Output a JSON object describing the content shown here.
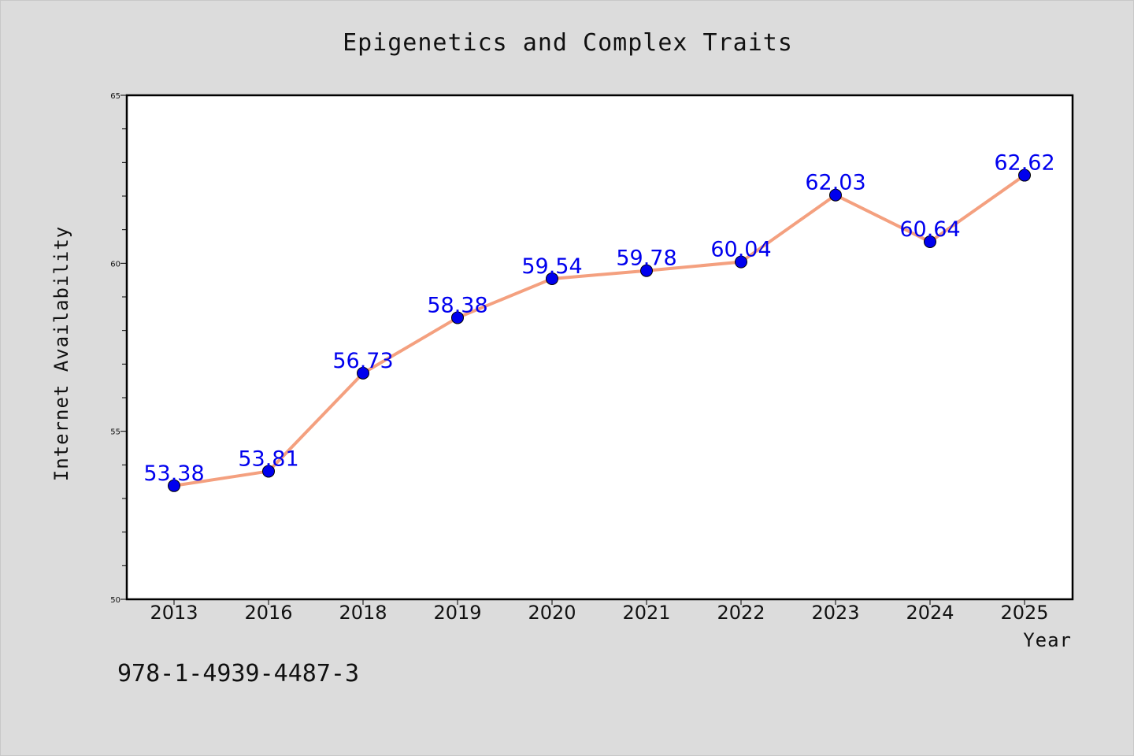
{
  "footer_text": "978-1-4939-4487-3",
  "colors": {
    "background": "#dcdcdc",
    "plot_background": "#ffffff",
    "line": "#f4a07f",
    "marker": "#0000ee",
    "data_label": "#0000ee",
    "axis": "#000000"
  },
  "chart_data": {
    "type": "line",
    "title": "Epigenetics and Complex Traits",
    "xlabel": "Year",
    "ylabel": "Internet Availability",
    "categories": [
      "2013",
      "2016",
      "2018",
      "2019",
      "2020",
      "2021",
      "2022",
      "2023",
      "2024",
      "2025"
    ],
    "series": [
      {
        "values": [
          53.38,
          53.81,
          56.73,
          58.38,
          59.54,
          59.78,
          60.04,
          62.03,
          60.64,
          62.62
        ],
        "data_labels": [
          "53.38",
          "53.81",
          "56.73",
          "58.38",
          "59.54",
          "59.78",
          "60.04",
          "62.03",
          "60.64",
          "62.62"
        ]
      }
    ],
    "ylim": [
      50,
      65
    ],
    "yticks": [
      50,
      55,
      60,
      65
    ],
    "ytick_labels": [
      "50",
      "55",
      "60",
      "65"
    ],
    "y_minor_step": 1,
    "grid": false,
    "legend": "none"
  }
}
